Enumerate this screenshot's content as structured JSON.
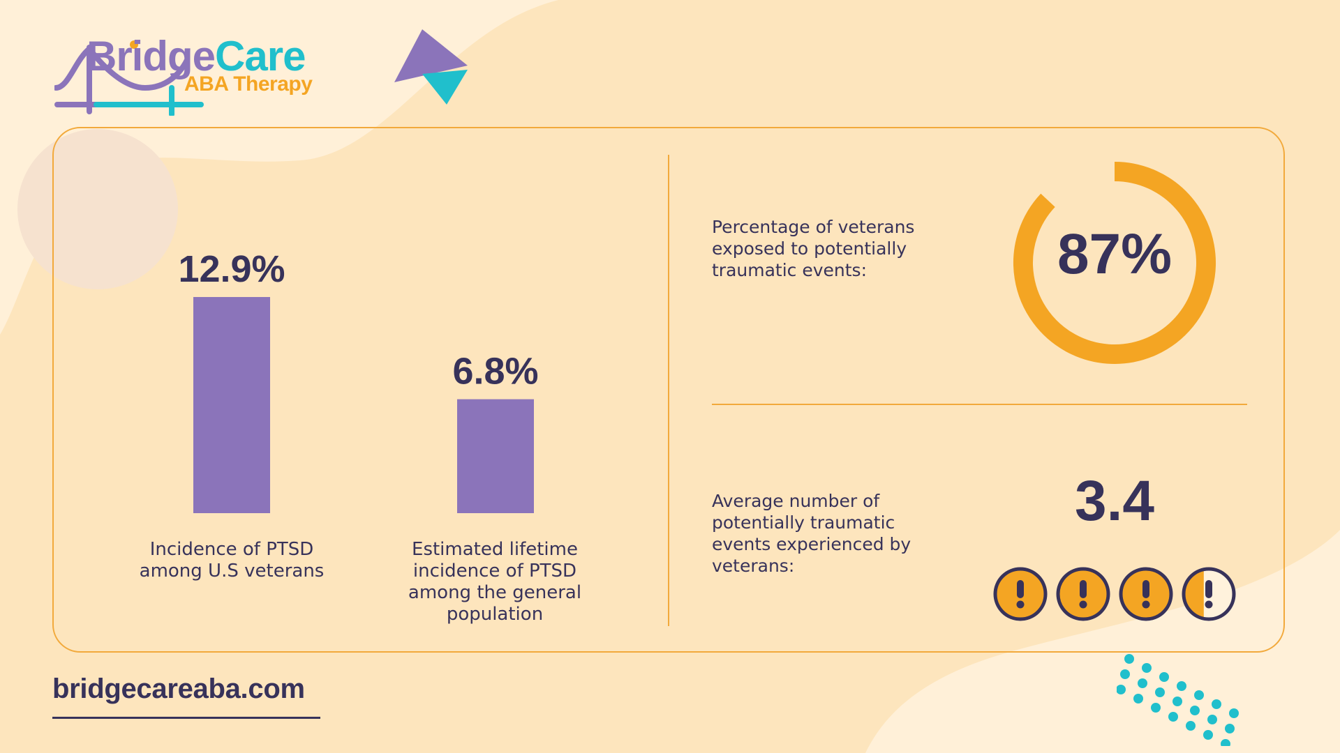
{
  "brand": {
    "name_part1": "Bridge",
    "name_part2": "Care",
    "subtitle": "ABA Therapy"
  },
  "colors": {
    "background": "#fde5bd",
    "navy": "#37325a",
    "purple": "#8b74ba",
    "teal": "#20bfcc",
    "orange": "#f4a523"
  },
  "chart_data": [
    {
      "type": "bar",
      "categories": [
        "Incidence of PTSD among U.S veterans",
        "Estimated lifetime incidence of PTSD among the general population"
      ],
      "values": [
        12.9,
        6.8
      ],
      "data_labels": [
        "12.9%",
        "6.8%"
      ],
      "unit": "%",
      "ylim": [
        0,
        15
      ],
      "grid": false,
      "series_color": "#8b74ba"
    },
    {
      "type": "pie",
      "style": "donut",
      "label": "Percentage of veterans exposed to potentially traumatic events:",
      "value": 87,
      "value_label": "87%",
      "color": "#f4a523"
    },
    {
      "type": "icon-scale",
      "label": "Average number of potentially traumatic events experienced by veterans:",
      "value": 3.4,
      "value_label": "3.4",
      "icon": "exclamation-icon",
      "icon_count": 4
    }
  ],
  "footer": {
    "website": "bridgecareaba.com"
  }
}
